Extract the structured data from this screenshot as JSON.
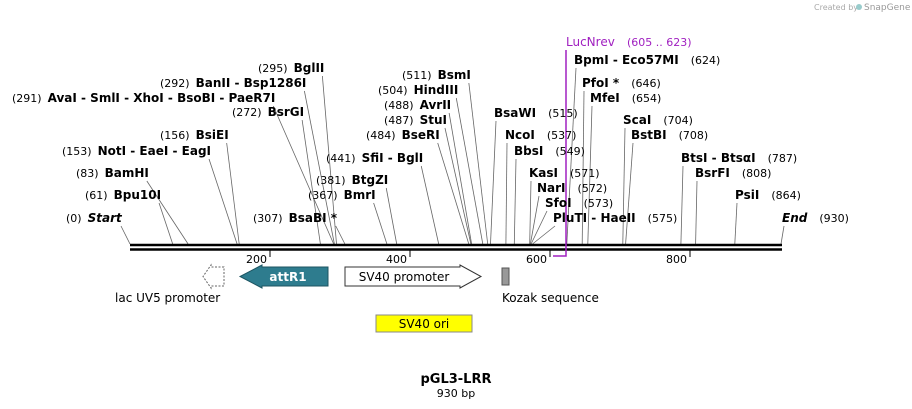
{
  "credit": {
    "prefix": "Created by",
    "brand": "SnapGene"
  },
  "sites": [
    {
      "position": "(0)",
      "name": "Start"
    },
    {
      "position": "(61)",
      "name": "Bpu10I"
    },
    {
      "position": "(83)",
      "name": "BamHI"
    },
    {
      "position": "(153)",
      "name": "NotI - EaeI - EagI"
    },
    {
      "position": "(156)",
      "name": "BsiEI"
    },
    {
      "position": "(291)",
      "name": "AvaI - SmlI - XhoI - BsoBI - PaeR7I"
    },
    {
      "position": "(292)",
      "name": "BanII - Bsp1286I"
    },
    {
      "position": "(272)",
      "name": "BsrGI"
    },
    {
      "position": "(295)",
      "name": "BglII"
    },
    {
      "position": "(307)",
      "name": "BsaBI *"
    },
    {
      "position": "(367)",
      "name": "BmrI"
    },
    {
      "position": "(381)",
      "name": "BtgZI"
    },
    {
      "position": "(441)",
      "name": "SfiI - BglI"
    },
    {
      "position": "(484)",
      "name": "BseRI"
    },
    {
      "position": "(487)",
      "name": "StuI"
    },
    {
      "position": "(488)",
      "name": "AvrII"
    },
    {
      "position": "(504)",
      "name": "HindIII"
    },
    {
      "position": "(511)",
      "name": "BsmI"
    },
    {
      "position": "(515)",
      "name": "BsaWI"
    },
    {
      "position": "(537)",
      "name": "NcoI"
    },
    {
      "position": "(549)",
      "name": "BbsI"
    },
    {
      "position": "(571)",
      "name": "KasI"
    },
    {
      "position": "(572)",
      "name": "NarI"
    },
    {
      "position": "(573)",
      "name": "SfoI"
    },
    {
      "position": "(575)",
      "name": "PluTI - HaeII"
    },
    {
      "position": "(624)",
      "name": "BpmI - Eco57MI"
    },
    {
      "position": "(646)",
      "name": "PfoI *"
    },
    {
      "position": "(654)",
      "name": "MfeI"
    },
    {
      "position": "(704)",
      "name": "ScaI"
    },
    {
      "position": "(708)",
      "name": "BstBI"
    },
    {
      "position": "(787)",
      "name": "BtsI - BtsαI"
    },
    {
      "position": "(808)",
      "name": "BsrFI"
    },
    {
      "position": "(864)",
      "name": "PsiI"
    },
    {
      "position": "(930)",
      "name": "End"
    }
  ],
  "primer": {
    "name": "LucNrev",
    "range": "(605 .. 623)"
  },
  "features": [
    {
      "name": "lac UV5 promoter"
    },
    {
      "name": "attR1"
    },
    {
      "name": "SV40 promoter"
    },
    {
      "name": "Kozak sequence"
    },
    {
      "name": "SV40 ori"
    }
  ],
  "ruler": [
    200,
    400,
    600,
    800
  ],
  "title": "pGL3-LRR",
  "length": "930 bp"
}
